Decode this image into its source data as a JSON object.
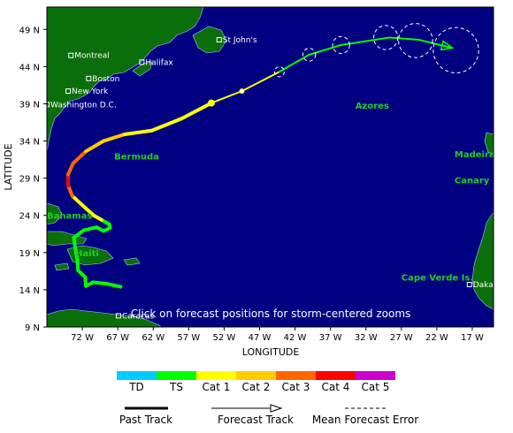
{
  "map": {
    "lon_range": [
      -77,
      -14
    ],
    "lat_range": [
      9,
      52
    ],
    "xlabel": "LONGITUDE",
    "ylabel": "LATITUDE",
    "lon_ticks": [
      {
        "lon": -72,
        "label": "72 W"
      },
      {
        "lon": -67,
        "label": "67 W"
      },
      {
        "lon": -62,
        "label": "62 W"
      },
      {
        "lon": -57,
        "label": "57 W"
      },
      {
        "lon": -52,
        "label": "52 W"
      },
      {
        "lon": -47,
        "label": "47 W"
      },
      {
        "lon": -42,
        "label": "42 W"
      },
      {
        "lon": -37,
        "label": "37 W"
      },
      {
        "lon": -32,
        "label": "32 W"
      },
      {
        "lon": -27,
        "label": "27 W"
      },
      {
        "lon": -22,
        "label": "22 W"
      },
      {
        "lon": -17,
        "label": "17 W"
      }
    ],
    "lat_ticks": [
      {
        "lat": 49,
        "label": "49 N"
      },
      {
        "lat": 44,
        "label": "44 N"
      },
      {
        "lat": 39,
        "label": "39 N"
      },
      {
        "lat": 34,
        "label": "34 N"
      },
      {
        "lat": 29,
        "label": "29 N"
      },
      {
        "lat": 24,
        "label": "24 N"
      },
      {
        "lat": 19,
        "label": "19 N"
      },
      {
        "lat": 14,
        "label": "14 N"
      },
      {
        "lat": 9,
        "label": "9 N"
      }
    ],
    "notice": "Click on forecast positions for storm-centered zooms",
    "colors": {
      "ocean": "#000080",
      "land": "#0a6e0a",
      "TD": "#00ccff",
      "TS": "#00ff00",
      "Cat 1": "#ffff00",
      "Cat 2": "#ffcc00",
      "Cat 3": "#ff6600",
      "Cat 4": "#ff0000",
      "Cat 5": "#cc00cc"
    },
    "cities": [
      {
        "name": "Montreal",
        "lon": -73.6,
        "lat": 45.5
      },
      {
        "name": "Halifax",
        "lon": -63.6,
        "lat": 44.6
      },
      {
        "name": "St John's",
        "lon": -52.7,
        "lat": 47.6
      },
      {
        "name": "Boston",
        "lon": -71.1,
        "lat": 42.4
      },
      {
        "name": "New York",
        "lon": -74.0,
        "lat": 40.7
      },
      {
        "name": "Washington D.C.",
        "lon": -77.0,
        "lat": 38.9
      },
      {
        "name": "Dakar",
        "lon": -17.4,
        "lat": 14.7
      },
      {
        "name": "Caracas",
        "lon": -66.9,
        "lat": 10.5
      }
    ],
    "regions": [
      {
        "name": "Bermuda",
        "lon": -67.5,
        "lat": 32.0
      },
      {
        "name": "Azores",
        "lon": -33.5,
        "lat": 38.8
      },
      {
        "name": "Madeira",
        "lon": -19.5,
        "lat": 32.3
      },
      {
        "name": "Canary",
        "lon": -19.5,
        "lat": 28.8
      },
      {
        "name": "Bahamas",
        "lon": -77.0,
        "lat": 24.0
      },
      {
        "name": "Haiti",
        "lon": -73.0,
        "lat": 19.0
      },
      {
        "name": "Cape Verde Is.",
        "lon": -27.0,
        "lat": 15.7
      }
    ],
    "past_track": [
      {
        "lon": -66.6,
        "lat": 14.4,
        "cat": "TS"
      },
      {
        "lon": -68.5,
        "lat": 14.8,
        "cat": "TS"
      },
      {
        "lon": -70.5,
        "lat": 15.0,
        "cat": "TS"
      },
      {
        "lon": -71.5,
        "lat": 14.5,
        "cat": "TS"
      },
      {
        "lon": -71.6,
        "lat": 15.7,
        "cat": "TS"
      },
      {
        "lon": -72.6,
        "lat": 16.6,
        "cat": "TS"
      },
      {
        "lon": -72.7,
        "lat": 18.0,
        "cat": "TS"
      },
      {
        "lon": -73.0,
        "lat": 19.6,
        "cat": "TS"
      },
      {
        "lon": -73.2,
        "lat": 21.0,
        "cat": "TS"
      },
      {
        "lon": -71.8,
        "lat": 22.0,
        "cat": "TS"
      },
      {
        "lon": -70.0,
        "lat": 22.4,
        "cat": "TS"
      },
      {
        "lon": -69.0,
        "lat": 21.9,
        "cat": "TS"
      },
      {
        "lon": -68.1,
        "lat": 22.3,
        "cat": "TS"
      },
      {
        "lon": -68.2,
        "lat": 22.8,
        "cat": "TS"
      },
      {
        "lon": -69.3,
        "lat": 23.4,
        "cat": "TS"
      },
      {
        "lon": -70.4,
        "lat": 24.0,
        "cat": "Cat 1"
      },
      {
        "lon": -71.8,
        "lat": 25.2,
        "cat": "Cat 1"
      },
      {
        "lon": -73.4,
        "lat": 26.6,
        "cat": "Cat 1"
      },
      {
        "lon": -74.0,
        "lat": 28.0,
        "cat": "Cat 3"
      },
      {
        "lon": -74.0,
        "lat": 29.5,
        "cat": "Cat 4"
      },
      {
        "lon": -73.3,
        "lat": 31.0,
        "cat": "Cat 3"
      },
      {
        "lon": -71.5,
        "lat": 32.6,
        "cat": "Cat 3"
      },
      {
        "lon": -69.0,
        "lat": 34.0,
        "cat": "Cat 2"
      },
      {
        "lon": -66.0,
        "lat": 34.9,
        "cat": "Cat 2"
      },
      {
        "lon": -62.2,
        "lat": 35.4,
        "cat": "Cat 1"
      },
      {
        "lon": -58.0,
        "lat": 37.0,
        "cat": "Cat 1"
      },
      {
        "lon": -53.8,
        "lat": 39.1,
        "cat": "Cat 1"
      }
    ],
    "forecast_track": [
      {
        "lon": -53.8,
        "lat": 39.1,
        "cat": "Cat 1"
      },
      {
        "lon": -49.5,
        "lat": 40.7,
        "cat": "Cat 1"
      },
      {
        "lon": -44.2,
        "lat": 43.3,
        "cat": "Cat 1"
      },
      {
        "lon": -40.0,
        "lat": 45.6,
        "cat": "TS"
      },
      {
        "lon": -35.5,
        "lat": 46.9,
        "cat": "TS"
      },
      {
        "lon": -28.7,
        "lat": 47.9,
        "cat": "TS"
      },
      {
        "lon": -24.5,
        "lat": 47.6,
        "cat": "TS"
      },
      {
        "lon": -19.8,
        "lat": 46.5,
        "cat": "TS"
      }
    ],
    "forecast_points": [
      {
        "lon": -53.8,
        "lat": 39.1,
        "r_deg": 0.6,
        "cat": "Cat 1"
      },
      {
        "lon": -49.5,
        "lat": 40.7,
        "r_deg": 0.3,
        "cat": "Cat 1"
      },
      {
        "lon": -44.2,
        "lat": 43.3,
        "r_deg": 0.7,
        "cat": "Cat 1"
      },
      {
        "lon": -40.0,
        "lat": 45.6,
        "r_deg": 0.9,
        "cat": "TS"
      },
      {
        "lon": -35.5,
        "lat": 46.9,
        "r_deg": 1.2,
        "cat": "TS"
      },
      {
        "lon": -29.2,
        "lat": 47.9,
        "r_deg": 1.7,
        "cat": "TS"
      },
      {
        "lon": -25.0,
        "lat": 47.5,
        "r_deg": 2.4,
        "cat": "TS"
      },
      {
        "lon": -19.3,
        "lat": 46.2,
        "r_deg": 3.2,
        "cat": "TS"
      }
    ]
  },
  "legend": {
    "categories": [
      {
        "key": "TD",
        "label": "TD"
      },
      {
        "key": "TS",
        "label": "TS"
      },
      {
        "key": "Cat 1",
        "label": "Cat 1"
      },
      {
        "key": "Cat 2",
        "label": "Cat 2"
      },
      {
        "key": "Cat 3",
        "label": "Cat 3"
      },
      {
        "key": "Cat 4",
        "label": "Cat 4"
      },
      {
        "key": "Cat 5",
        "label": "Cat 5"
      }
    ],
    "past_track_label": "Past Track",
    "forecast_track_label": "Forecast Track",
    "mean_error_label": "Mean Forecast Error"
  }
}
